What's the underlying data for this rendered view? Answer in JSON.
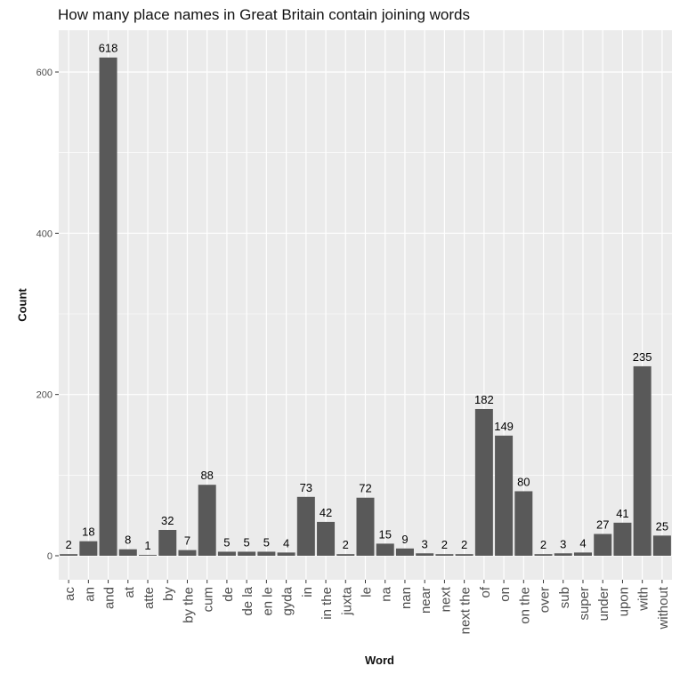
{
  "chart_data": {
    "type": "bar",
    "title": "How many place names in Great Britain contain joining words",
    "xlabel": "Word",
    "ylabel": "Count",
    "ylim": [
      0,
      650
    ],
    "yticks": [
      0,
      200,
      400,
      600
    ],
    "grid": true,
    "colors": {
      "bar": "#595959",
      "panel": "#ebebeb",
      "grid": "#ffffff"
    },
    "categories": [
      "ac",
      "an",
      "and",
      "at",
      "atte",
      "by",
      "by the",
      "cum",
      "de",
      "de la",
      "en le",
      "gyda",
      "in",
      "in the",
      "juxta",
      "le",
      "na",
      "nan",
      "near",
      "next",
      "next the",
      "of",
      "on",
      "on the",
      "over",
      "sub",
      "super",
      "under",
      "upon",
      "with",
      "without"
    ],
    "values": [
      2,
      18,
      618,
      8,
      1,
      32,
      7,
      88,
      5,
      5,
      5,
      4,
      73,
      42,
      2,
      72,
      15,
      9,
      3,
      2,
      2,
      182,
      149,
      80,
      2,
      3,
      4,
      27,
      41,
      235,
      25
    ],
    "data_labels": [
      "2",
      "18",
      "618",
      "8",
      "1",
      "32",
      "7",
      "88",
      "5",
      "5",
      "5",
      "4",
      "73",
      "42",
      "2",
      "72",
      "15",
      "9",
      "3",
      "2",
      "2",
      "182",
      "149",
      "80",
      "2",
      "3",
      "4",
      "27",
      "41",
      "235",
      "25"
    ]
  }
}
